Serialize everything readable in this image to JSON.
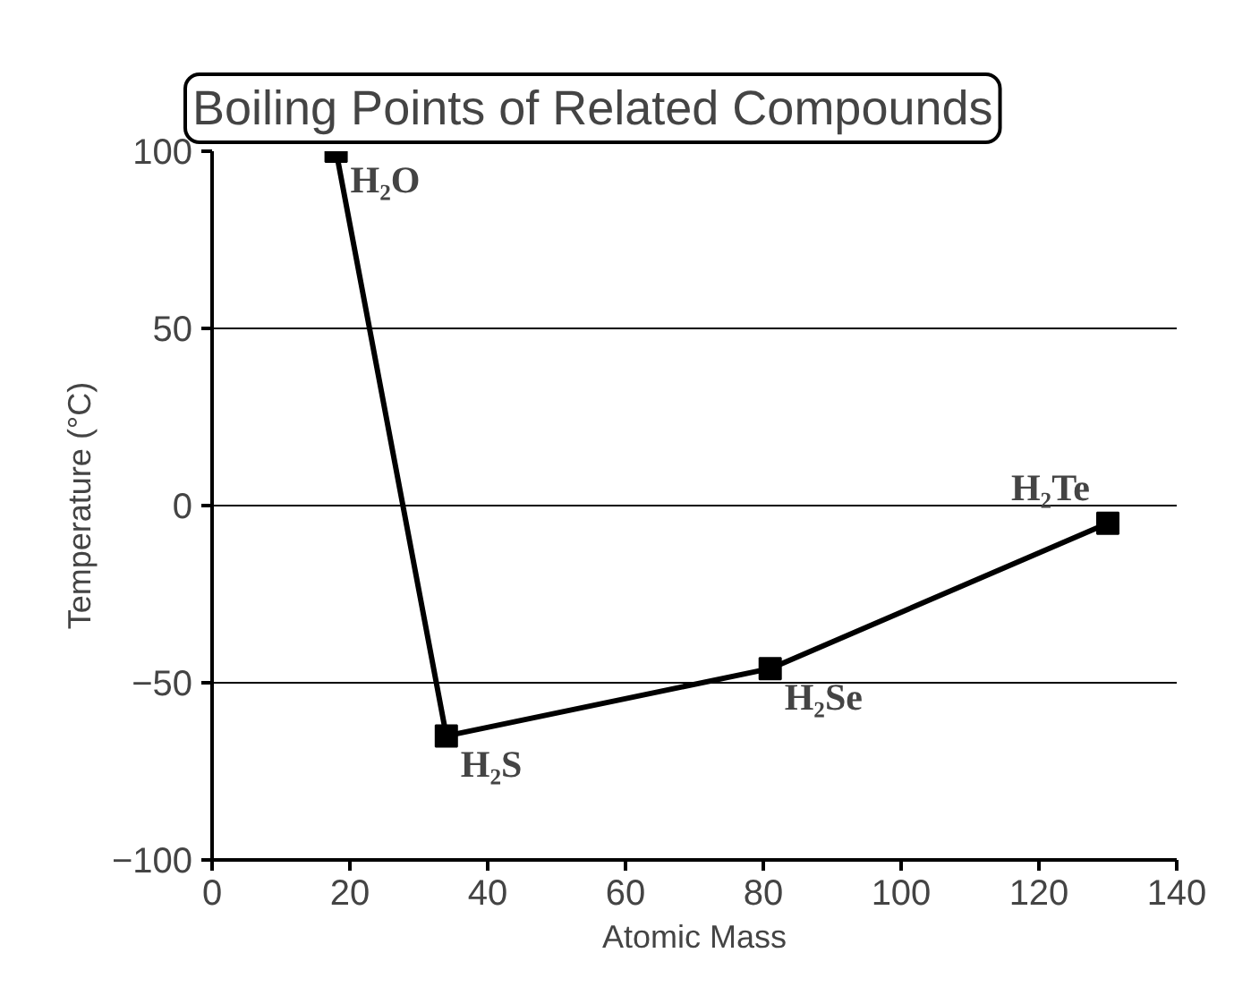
{
  "chart_data": {
    "type": "line",
    "title": "Boiling Points of Related Compounds",
    "xlabel": "Atomic Mass",
    "ylabel": "Temperature (°C)",
    "x": [
      18,
      34,
      81,
      130
    ],
    "series": [
      {
        "color": "#000000",
        "values": [
          100,
          -65,
          -46,
          -5
        ]
      }
    ],
    "xlim": [
      0,
      140
    ],
    "xticks": [
      0,
      20,
      40,
      60,
      80,
      100,
      120,
      140
    ],
    "ylim": [
      -100,
      100
    ],
    "yticks": [
      -100,
      -50,
      0,
      50,
      100
    ],
    "grid": "y",
    "marker": "square",
    "line_style": "solid",
    "annotations": [
      {
        "text": "H₂O",
        "x": 18,
        "y": 100
      },
      {
        "text": "H₂S",
        "x": 34,
        "y": -65
      },
      {
        "text": "H₂Se",
        "x": 81,
        "y": -46
      },
      {
        "text": "H₂Te",
        "x": 130,
        "y": -5
      }
    ]
  }
}
